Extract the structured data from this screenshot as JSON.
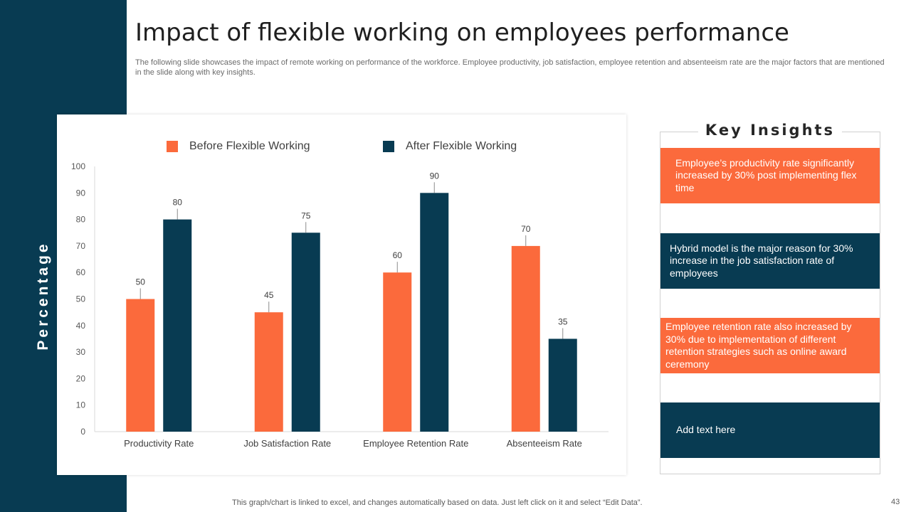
{
  "slide": {
    "title": "Impact of flexible working on employees performance",
    "subtitle": "The following slide showcases the impact of remote working on performance of the workforce. Employee productivity, job satisfaction, employee retention and absenteeism rate are the major factors that are mentioned in the slide along with key insights.",
    "footer_note": "This graph/chart is linked to excel,  and changes automatically based on data. Just left click on it and select “Edit Data”.",
    "page_number": "43"
  },
  "colors": {
    "navy": "#083b52",
    "orange": "#fb6a3c"
  },
  "chart_data": {
    "type": "bar",
    "title": "",
    "xlabel": "",
    "ylabel": "Percentage",
    "ylim": [
      0,
      100
    ],
    "yticks": [
      0,
      10,
      20,
      30,
      40,
      50,
      60,
      70,
      80,
      90,
      100
    ],
    "grid": false,
    "legend_position": "top",
    "categories": [
      "Productivity Rate",
      "Job Satisfaction Rate",
      "Employee Retention Rate",
      "Absenteeism Rate"
    ],
    "series": [
      {
        "name": "Before Flexible Working",
        "color": "#fb6a3c",
        "values": [
          50,
          45,
          60,
          70
        ]
      },
      {
        "name": "After Flexible Working",
        "color": "#083b52",
        "values": [
          80,
          75,
          90,
          35
        ]
      }
    ]
  },
  "insights": {
    "title": "Key Insights",
    "items": [
      {
        "text": "Employee’s productivity rate significantly increased by 30% post implementing flex time",
        "style": "orange"
      },
      {
        "text": "Hybrid model is the major reason for 30% increase in the job satisfaction rate of employees",
        "style": "navy"
      },
      {
        "text": "Employee retention rate also increased by 30% due to implementation of different retention strategies such as online award ceremony",
        "style": "orange"
      },
      {
        "text": "Add text here",
        "style": "navy"
      }
    ]
  }
}
